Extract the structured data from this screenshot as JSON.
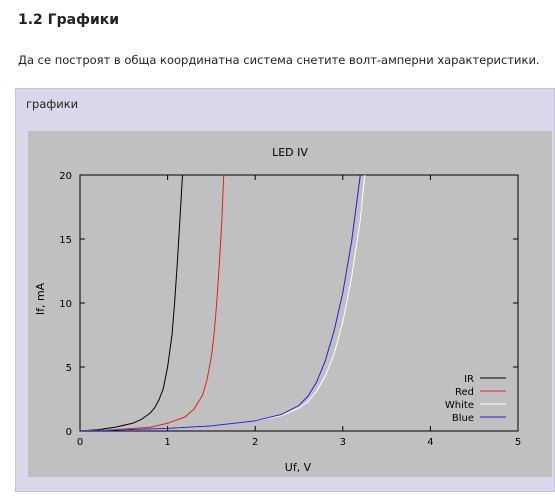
{
  "section": {
    "title": "1.2 Графики",
    "intro": "Да се построят в обща координатна система снетите волт-амперни характеристики."
  },
  "panel": {
    "label": "графики"
  },
  "chart_data": {
    "type": "line",
    "title": "LED IV",
    "xlabel": "Uf, V",
    "ylabel": "If, mA",
    "xlim": [
      0,
      5
    ],
    "ylim": [
      0,
      20
    ],
    "xticks": [
      0,
      1,
      2,
      3,
      4,
      5
    ],
    "yticks": [
      0,
      5,
      10,
      15,
      20
    ],
    "grid": false,
    "legend_position": "bottom-right",
    "background": "#c0c0c0",
    "series": [
      {
        "name": "IR",
        "color": "#000000",
        "x": [
          0,
          0.2,
          0.4,
          0.6,
          0.7,
          0.8,
          0.85,
          0.9,
          0.95,
          1.0,
          1.05,
          1.08,
          1.11,
          1.14,
          1.17
        ],
        "y": [
          0,
          0.1,
          0.3,
          0.6,
          0.9,
          1.4,
          1.8,
          2.4,
          3.3,
          5.0,
          7.5,
          10.0,
          13.0,
          16.5,
          20.0
        ]
      },
      {
        "name": "Red",
        "color": "#e02020",
        "x": [
          0,
          0.4,
          0.8,
          1.0,
          1.2,
          1.3,
          1.4,
          1.45,
          1.5,
          1.53,
          1.56,
          1.59,
          1.62,
          1.64
        ],
        "y": [
          0,
          0.1,
          0.3,
          0.6,
          1.1,
          1.7,
          2.8,
          4.0,
          5.8,
          7.5,
          10.0,
          13.0,
          16.5,
          20.0
        ]
      },
      {
        "name": "White",
        "color": "#ffffff",
        "x": [
          0,
          0.5,
          1.0,
          1.5,
          2.0,
          2.3,
          2.5,
          2.6,
          2.7,
          2.8,
          2.9,
          3.0,
          3.1,
          3.2,
          3.25
        ],
        "y": [
          0,
          0.1,
          0.2,
          0.4,
          0.8,
          1.2,
          1.8,
          2.3,
          3.1,
          4.3,
          6.0,
          8.5,
          12.0,
          16.5,
          20.0
        ]
      },
      {
        "name": "Blue",
        "color": "#2020e0",
        "x": [
          0,
          0.5,
          1.0,
          1.5,
          2.0,
          2.3,
          2.5,
          2.6,
          2.7,
          2.8,
          2.9,
          3.0,
          3.1,
          3.2
        ],
        "y": [
          0,
          0.1,
          0.2,
          0.4,
          0.8,
          1.3,
          2.0,
          2.7,
          3.8,
          5.5,
          7.8,
          10.8,
          14.8,
          20.0
        ]
      }
    ]
  }
}
